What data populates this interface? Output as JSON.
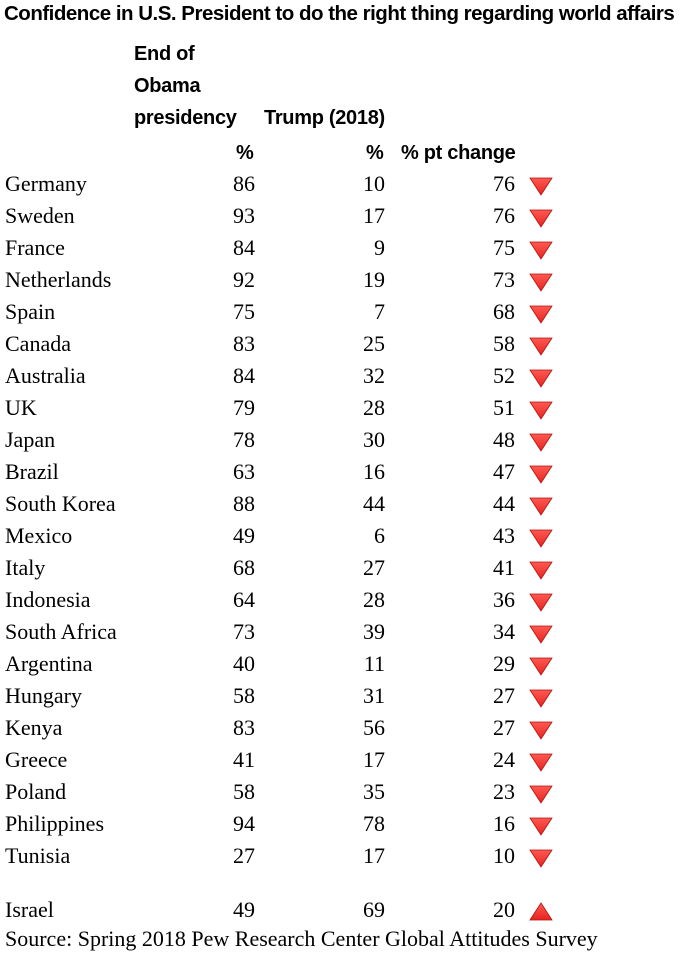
{
  "title": "Confidence in U.S. President to do the right thing regarding world affairs",
  "headers": {
    "obama": [
      "End of",
      "Obama",
      "presidency"
    ],
    "trump": "Trump (2018)",
    "pct_obama": "%",
    "pct_trump": "%",
    "change": "% pt change"
  },
  "source": "Source: Spring 2018 Pew Research Center Global Attitudes Survey",
  "colors": {
    "arrow": "#e8231f"
  },
  "chart_data": {
    "type": "table",
    "title": "Confidence in U.S. President to do the right thing regarding world affairs",
    "columns": [
      "End of Obama presidency %",
      "Trump (2018) %",
      "% pt change"
    ],
    "rows": [
      {
        "country": "Germany",
        "obama": "86",
        "trump": "10",
        "change": "76",
        "direction": "down"
      },
      {
        "country": "Sweden",
        "obama": "93",
        "trump": "17",
        "change": "76",
        "direction": "down"
      },
      {
        "country": "France",
        "obama": "84",
        "trump": "9",
        "change": "75",
        "direction": "down"
      },
      {
        "country": "Netherlands",
        "obama": "92",
        "trump": "19",
        "change": "73",
        "direction": "down"
      },
      {
        "country": "Spain",
        "obama": "75",
        "trump": "7",
        "change": "68",
        "direction": "down"
      },
      {
        "country": "Canada",
        "obama": "83",
        "trump": "25",
        "change": "58",
        "direction": "down"
      },
      {
        "country": "Australia",
        "obama": "84",
        "trump": "32",
        "change": "52",
        "direction": "down"
      },
      {
        "country": "UK",
        "obama": "79",
        "trump": "28",
        "change": "51",
        "direction": "down"
      },
      {
        "country": "Japan",
        "obama": "78",
        "trump": "30",
        "change": "48",
        "direction": "down"
      },
      {
        "country": "Brazil",
        "obama": "63",
        "trump": "16",
        "change": "47",
        "direction": "down"
      },
      {
        "country": "South Korea",
        "obama": "88",
        "trump": "44",
        "change": "44",
        "direction": "down"
      },
      {
        "country": "Mexico",
        "obama": "49",
        "trump": "6",
        "change": "43",
        "direction": "down"
      },
      {
        "country": "Italy",
        "obama": "68",
        "trump": "27",
        "change": "41",
        "direction": "down"
      },
      {
        "country": "Indonesia",
        "obama": "64",
        "trump": "28",
        "change": "36",
        "direction": "down"
      },
      {
        "country": "South Africa",
        "obama": "73",
        "trump": "39",
        "change": "34",
        "direction": "down"
      },
      {
        "country": "Argentina",
        "obama": "40",
        "trump": "11",
        "change": "29",
        "direction": "down"
      },
      {
        "country": "Hungary",
        "obama": "58",
        "trump": "31",
        "change": "27",
        "direction": "down"
      },
      {
        "country": "Kenya",
        "obama": "83",
        "trump": "56",
        "change": "27",
        "direction": "down"
      },
      {
        "country": "Greece",
        "obama": "41",
        "trump": "17",
        "change": "24",
        "direction": "down"
      },
      {
        "country": "Poland",
        "obama": "58",
        "trump": "35",
        "change": "23",
        "direction": "down"
      },
      {
        "country": "Philippines",
        "obama": "94",
        "trump": "78",
        "change": "16",
        "direction": "down"
      },
      {
        "country": "Tunisia",
        "obama": "27",
        "trump": "17",
        "change": "10",
        "direction": "down"
      },
      {
        "country": "Israel",
        "obama": "49",
        "trump": "69",
        "change": "20",
        "direction": "up"
      }
    ]
  }
}
